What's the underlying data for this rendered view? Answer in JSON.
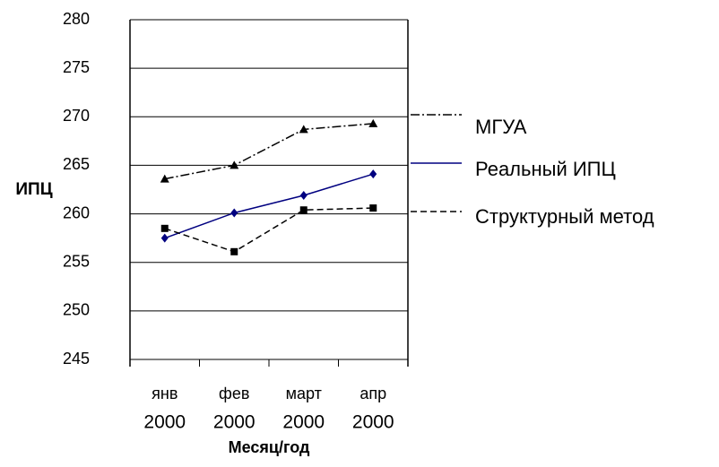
{
  "chart_data": {
    "type": "line",
    "ylabel": "ИПЦ",
    "xlabel": "Месяц/год",
    "categories": [
      "янв",
      "фев",
      "март",
      "апр"
    ],
    "category_years": [
      "2000",
      "2000",
      "2000",
      "2000"
    ],
    "ylim": [
      245,
      280
    ],
    "yticks": [
      245,
      250,
      255,
      260,
      265,
      270,
      275,
      280
    ],
    "grid": true,
    "series": [
      {
        "name": "МГУА",
        "color": "#000000",
        "dash": "dashdot",
        "marker": "triangle",
        "values": [
          263.6,
          265.0,
          268.7,
          269.3
        ]
      },
      {
        "name": "Реальный ИПЦ",
        "color": "#000080",
        "dash": "solid",
        "marker": "diamond",
        "values": [
          257.5,
          260.1,
          261.9,
          264.1
        ]
      },
      {
        "name": "Структурный метод",
        "color": "#000000",
        "dash": "dashed",
        "marker": "square",
        "values": [
          258.5,
          256.1,
          260.4,
          260.6
        ]
      }
    ]
  }
}
